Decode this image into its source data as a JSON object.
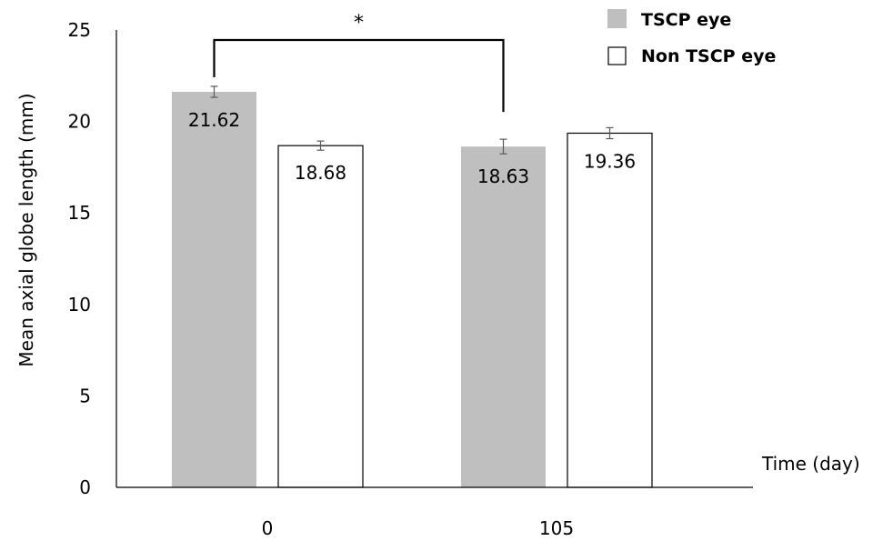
{
  "chart_data": {
    "type": "bar",
    "title": "",
    "xlabel": "Time (day)",
    "ylabel": "Mean axial globe length (mm)",
    "ylim": [
      0,
      25
    ],
    "yticks": [
      0,
      5,
      10,
      15,
      20,
      25
    ],
    "categories": [
      "0",
      "105"
    ],
    "grid": false,
    "legend": "top-right",
    "series": [
      {
        "name": "TSCP eye",
        "color": "#bfbfbf",
        "values": [
          21.62,
          18.63
        ],
        "errors": [
          0.3,
          0.4
        ],
        "data_labels": [
          "21.62",
          "18.63"
        ]
      },
      {
        "name": "Non TSCP eye",
        "color": "#ffffff",
        "values": [
          18.68,
          19.36
        ],
        "errors": [
          0.25,
          0.3
        ],
        "data_labels": [
          "18.68",
          "19.36"
        ]
      }
    ],
    "annotation": {
      "text": "*",
      "from": "TSCP eye, 0",
      "to": "TSCP eye, 105"
    }
  }
}
